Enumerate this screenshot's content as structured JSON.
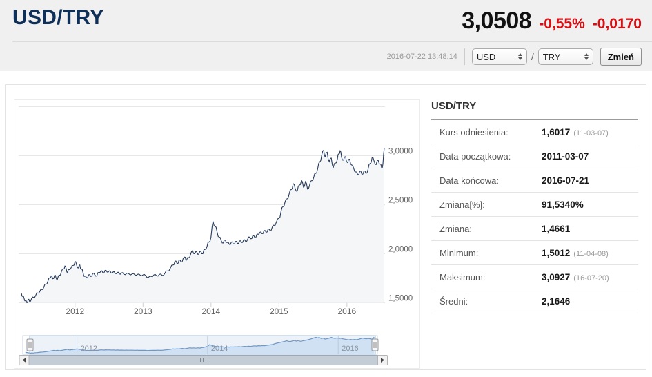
{
  "header": {
    "pair": "USD/TRY",
    "price": "3,0508",
    "change_percent": "-0,55%",
    "change_value": "-0,0170",
    "timestamp": "2016-07-22 13:48:14",
    "currency_from": "USD",
    "currency_to": "TRY",
    "pair_separator": "/",
    "submit_label": "Zmień"
  },
  "stats": {
    "title": "USD/TRY",
    "rows": [
      {
        "label": "Kurs odniesienia:",
        "value": "1,6017",
        "note": "(11-03-07)"
      },
      {
        "label": "Data początkowa:",
        "value": "2011-03-07",
        "note": ""
      },
      {
        "label": "Data końcowa:",
        "value": "2016-07-21",
        "note": ""
      },
      {
        "label": "Zmiana[%]:",
        "value": "91,5340%",
        "note": ""
      },
      {
        "label": "Zmiana:",
        "value": "1,4661",
        "note": ""
      },
      {
        "label": "Minimum:",
        "value": "1,5012",
        "note": "(11-04-08)"
      },
      {
        "label": "Maksimum:",
        "value": "3,0927",
        "note": "(16-07-20)"
      },
      {
        "label": "Średni:",
        "value": "2,1646",
        "note": ""
      }
    ]
  },
  "colors": {
    "accent_navy": "#0d2f58",
    "negative_red": "#d90d12",
    "series_line": "#24395a",
    "series_fill": "#f5f6f8",
    "grid": "#e7e7e7",
    "axis_label": "#5f5f5f",
    "navigator_line": "#6d94c4",
    "navigator_fill": "#dfebf9",
    "navigator_mask": "rgba(125,165,205,0.15)",
    "scrollbar_thumb": "#c4cdd6"
  },
  "chart_data": {
    "type": "area",
    "title": "",
    "xlabel": "",
    "ylabel": "",
    "grid": true,
    "legend": "none",
    "xlim": [
      2011.21,
      2016.56
    ],
    "ylim": [
      1.5,
      3.5
    ],
    "x_ticks": [
      {
        "value": 2012,
        "label": "2012"
      },
      {
        "value": 2013,
        "label": "2013"
      },
      {
        "value": 2014,
        "label": "2014"
      },
      {
        "value": 2015,
        "label": "2015"
      },
      {
        "value": 2016,
        "label": "2016"
      }
    ],
    "y_ticks": [
      {
        "value": 1.5,
        "label": "1,5000"
      },
      {
        "value": 2.0,
        "label": "2,0000"
      },
      {
        "value": 2.5,
        "label": "2,5000"
      },
      {
        "value": 3.0,
        "label": "3,0000"
      },
      {
        "value": 3.5,
        "label": ""
      }
    ],
    "navigator": {
      "x_ticks": [
        {
          "value": 2012,
          "label": "2012"
        },
        {
          "value": 2014,
          "label": "2014"
        },
        {
          "value": 2016,
          "label": "2016"
        }
      ]
    },
    "series": [
      {
        "name": "USD/TRY",
        "points": [
          [
            2011.21,
            1.597
          ],
          [
            2011.23,
            1.565
          ],
          [
            2011.25,
            1.545
          ],
          [
            2011.27,
            1.52
          ],
          [
            2011.29,
            1.501
          ],
          [
            2011.31,
            1.535
          ],
          [
            2011.33,
            1.515
          ],
          [
            2011.36,
            1.545
          ],
          [
            2011.39,
            1.555
          ],
          [
            2011.42,
            1.575
          ],
          [
            2011.45,
            1.6
          ],
          [
            2011.48,
            1.615
          ],
          [
            2011.51,
            1.635
          ],
          [
            2011.54,
            1.66
          ],
          [
            2011.57,
            1.69
          ],
          [
            2011.6,
            1.72
          ],
          [
            2011.63,
            1.755
          ],
          [
            2011.65,
            1.775
          ],
          [
            2011.67,
            1.745
          ],
          [
            2011.7,
            1.78
          ],
          [
            2011.72,
            1.755
          ],
          [
            2011.74,
            1.74
          ],
          [
            2011.77,
            1.78
          ],
          [
            2011.8,
            1.82
          ],
          [
            2011.83,
            1.845
          ],
          [
            2011.85,
            1.875
          ],
          [
            2011.87,
            1.845
          ],
          [
            2011.89,
            1.81
          ],
          [
            2011.91,
            1.84
          ],
          [
            2011.94,
            1.855
          ],
          [
            2011.97,
            1.88
          ],
          [
            2012.0,
            1.92
          ],
          [
            2012.02,
            1.89
          ],
          [
            2012.05,
            1.855
          ],
          [
            2012.07,
            1.885
          ],
          [
            2012.09,
            1.845
          ],
          [
            2012.12,
            1.8
          ],
          [
            2012.14,
            1.77
          ],
          [
            2012.17,
            1.755
          ],
          [
            2012.2,
            1.785
          ],
          [
            2012.23,
            1.77
          ],
          [
            2012.26,
            1.8
          ],
          [
            2012.29,
            1.785
          ],
          [
            2012.32,
            1.775
          ],
          [
            2012.35,
            1.81
          ],
          [
            2012.38,
            1.825
          ],
          [
            2012.41,
            1.805
          ],
          [
            2012.44,
            1.83
          ],
          [
            2012.47,
            1.815
          ],
          [
            2012.5,
            1.825
          ],
          [
            2012.53,
            1.805
          ],
          [
            2012.56,
            1.815
          ],
          [
            2012.59,
            1.8
          ],
          [
            2012.62,
            1.81
          ],
          [
            2012.65,
            1.795
          ],
          [
            2012.68,
            1.805
          ],
          [
            2012.72,
            1.79
          ],
          [
            2012.76,
            1.8
          ],
          [
            2012.8,
            1.79
          ],
          [
            2012.84,
            1.795
          ],
          [
            2012.88,
            1.785
          ],
          [
            2012.92,
            1.79
          ],
          [
            2012.96,
            1.78
          ],
          [
            2013.0,
            1.785
          ],
          [
            2013.04,
            1.775
          ],
          [
            2013.08,
            1.76
          ],
          [
            2013.12,
            1.77
          ],
          [
            2013.16,
            1.785
          ],
          [
            2013.2,
            1.775
          ],
          [
            2013.24,
            1.79
          ],
          [
            2013.28,
            1.78
          ],
          [
            2013.32,
            1.8
          ],
          [
            2013.36,
            1.825
          ],
          [
            2013.4,
            1.85
          ],
          [
            2013.44,
            1.885
          ],
          [
            2013.47,
            1.925
          ],
          [
            2013.5,
            1.9
          ],
          [
            2013.53,
            1.935
          ],
          [
            2013.56,
            1.915
          ],
          [
            2013.59,
            1.95
          ],
          [
            2013.62,
            1.965
          ],
          [
            2013.64,
            1.935
          ],
          [
            2013.67,
            1.96
          ],
          [
            2013.7,
            1.995
          ],
          [
            2013.73,
            2.03
          ],
          [
            2013.76,
            2.0
          ],
          [
            2013.79,
            2.02
          ],
          [
            2013.82,
            1.995
          ],
          [
            2013.85,
            2.025
          ],
          [
            2013.88,
            2.0
          ],
          [
            2013.91,
            2.045
          ],
          [
            2013.94,
            2.07
          ],
          [
            2013.97,
            2.12
          ],
          [
            2014.0,
            2.17
          ],
          [
            2014.03,
            2.33
          ],
          [
            2014.06,
            2.28
          ],
          [
            2014.09,
            2.22
          ],
          [
            2014.12,
            2.17
          ],
          [
            2014.15,
            2.135
          ],
          [
            2014.18,
            2.11
          ],
          [
            2014.21,
            2.14
          ],
          [
            2014.24,
            2.115
          ],
          [
            2014.27,
            2.095
          ],
          [
            2014.3,
            2.12
          ],
          [
            2014.33,
            2.1
          ],
          [
            2014.36,
            2.125
          ],
          [
            2014.39,
            2.105
          ],
          [
            2014.42,
            2.13
          ],
          [
            2014.45,
            2.115
          ],
          [
            2014.48,
            2.14
          ],
          [
            2014.51,
            2.125
          ],
          [
            2014.54,
            2.15
          ],
          [
            2014.57,
            2.17
          ],
          [
            2014.6,
            2.155
          ],
          [
            2014.63,
            2.185
          ],
          [
            2014.66,
            2.165
          ],
          [
            2014.69,
            2.2
          ],
          [
            2014.72,
            2.22
          ],
          [
            2014.75,
            2.205
          ],
          [
            2014.78,
            2.235
          ],
          [
            2014.81,
            2.22
          ],
          [
            2014.84,
            2.25
          ],
          [
            2014.87,
            2.235
          ],
          [
            2014.9,
            2.27
          ],
          [
            2014.93,
            2.29
          ],
          [
            2014.96,
            2.32
          ],
          [
            2015.0,
            2.36
          ],
          [
            2015.03,
            2.43
          ],
          [
            2015.06,
            2.48
          ],
          [
            2015.09,
            2.53
          ],
          [
            2015.12,
            2.56
          ],
          [
            2015.15,
            2.61
          ],
          [
            2015.18,
            2.655
          ],
          [
            2015.21,
            2.715
          ],
          [
            2015.24,
            2.66
          ],
          [
            2015.27,
            2.64
          ],
          [
            2015.3,
            2.7
          ],
          [
            2015.33,
            2.745
          ],
          [
            2015.36,
            2.68
          ],
          [
            2015.39,
            2.735
          ],
          [
            2015.42,
            2.66
          ],
          [
            2015.45,
            2.7
          ],
          [
            2015.48,
            2.745
          ],
          [
            2015.51,
            2.775
          ],
          [
            2015.54,
            2.82
          ],
          [
            2015.57,
            2.87
          ],
          [
            2015.6,
            2.935
          ],
          [
            2015.63,
            3.01
          ],
          [
            2015.66,
            3.055
          ],
          [
            2015.68,
            2.99
          ],
          [
            2015.71,
            3.035
          ],
          [
            2015.74,
            2.94
          ],
          [
            2015.77,
            2.975
          ],
          [
            2015.8,
            2.88
          ],
          [
            2015.83,
            2.925
          ],
          [
            2015.86,
            2.965
          ],
          [
            2015.88,
            3.02
          ],
          [
            2015.9,
            3.05
          ],
          [
            2015.92,
            2.985
          ],
          [
            2015.95,
            2.955
          ],
          [
            2015.98,
            2.99
          ],
          [
            2016.01,
            2.93
          ],
          [
            2016.04,
            2.965
          ],
          [
            2016.07,
            2.905
          ],
          [
            2016.1,
            2.87
          ],
          [
            2016.13,
            2.835
          ],
          [
            2016.16,
            2.805
          ],
          [
            2016.19,
            2.845
          ],
          [
            2016.22,
            2.81
          ],
          [
            2016.25,
            2.845
          ],
          [
            2016.28,
            2.82
          ],
          [
            2016.31,
            2.86
          ],
          [
            2016.34,
            2.92
          ],
          [
            2016.37,
            2.98
          ],
          [
            2016.4,
            2.945
          ],
          [
            2016.43,
            2.91
          ],
          [
            2016.46,
            2.955
          ],
          [
            2016.49,
            2.915
          ],
          [
            2016.51,
            2.875
          ],
          [
            2016.53,
            2.915
          ],
          [
            2016.55,
            3.08
          ]
        ]
      }
    ]
  }
}
